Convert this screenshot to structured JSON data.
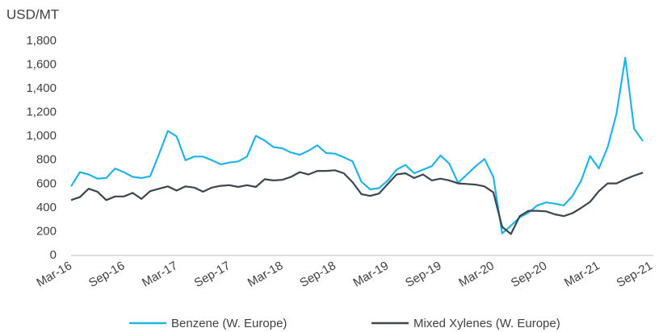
{
  "chart_data": {
    "type": "line",
    "ylabel": "USD/MT",
    "categories": [
      "Mar-16",
      null,
      null,
      null,
      null,
      null,
      "Sep-16",
      null,
      null,
      null,
      null,
      null,
      "Mar-17",
      null,
      null,
      null,
      null,
      null,
      "Sep-17",
      null,
      null,
      null,
      null,
      null,
      "Mar-18",
      null,
      null,
      null,
      null,
      null,
      "Sep-18",
      null,
      null,
      null,
      null,
      null,
      "Mar-19",
      null,
      null,
      null,
      null,
      null,
      "Sep-19",
      null,
      null,
      null,
      null,
      null,
      "Mar-20",
      null,
      null,
      null,
      null,
      null,
      "Sep-20",
      null,
      null,
      null,
      null,
      null,
      "Mar-21",
      null,
      null,
      null,
      null,
      null,
      "Sep-21"
    ],
    "series": [
      {
        "name": "Benzene (W. Europe)",
        "color": "#1fb5e8",
        "values": [
          580,
          700,
          680,
          645,
          650,
          730,
          700,
          660,
          650,
          665,
          850,
          1045,
          1000,
          800,
          830,
          830,
          800,
          765,
          780,
          790,
          830,
          1005,
          965,
          910,
          900,
          865,
          845,
          880,
          925,
          860,
          855,
          825,
          790,
          620,
          555,
          565,
          630,
          720,
          760,
          690,
          720,
          750,
          840,
          770,
          610,
          680,
          750,
          810,
          660,
          185,
          250,
          320,
          360,
          420,
          445,
          435,
          420,
          500,
          630,
          835,
          730,
          910,
          1190,
          1660,
          1065,
          960,
          null
        ]
      },
      {
        "name": "Mixed Xylenes (W. Europe)",
        "color": "#3a4650",
        "values": [
          465,
          490,
          560,
          535,
          465,
          495,
          495,
          525,
          475,
          540,
          560,
          580,
          545,
          580,
          570,
          535,
          570,
          585,
          590,
          575,
          590,
          575,
          640,
          630,
          635,
          660,
          700,
          680,
          710,
          710,
          715,
          690,
          615,
          515,
          500,
          520,
          600,
          680,
          690,
          650,
          680,
          630,
          645,
          630,
          605,
          600,
          595,
          580,
          530,
          240,
          180,
          330,
          375,
          375,
          370,
          345,
          330,
          355,
          400,
          450,
          540,
          605,
          605,
          640,
          670,
          695,
          null
        ]
      }
    ],
    "ylim": [
      0,
      1800
    ],
    "yticks": [
      0,
      200,
      400,
      600,
      800,
      {
        "value": 1000,
        "label": "1,000"
      },
      {
        "value": 1200,
        "label": "1,200"
      },
      {
        "value": 1400,
        "label": "1,400"
      },
      {
        "value": 1600,
        "label": "1,600"
      },
      {
        "value": 1800,
        "label": "1,800"
      }
    ],
    "grid": false
  }
}
